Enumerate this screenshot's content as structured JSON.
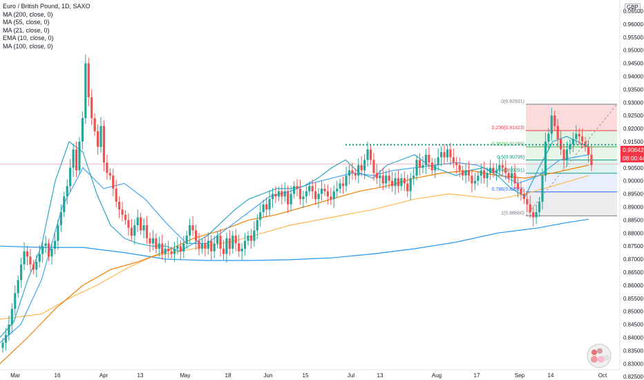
{
  "header": {
    "title": "Euro / British Pound, 1D, SAXO",
    "indicators": [
      "MA (200, close, 0)",
      "MA (55, close, 0)",
      "MA (21, close, 0)",
      "EMA (10, close, 0)",
      "MA (100, close, 0)"
    ]
  },
  "currency": "GBP",
  "price_labels": {
    "current": "0.90642",
    "timer": "08:00:44"
  },
  "colors": {
    "up": "#26a69a",
    "down": "#ef5350",
    "ma200": "#2196f3",
    "ma55": "#f57c00",
    "ma21": "#42a5f5",
    "ema10": "#2aa7c9",
    "ma100": "#ffb74d",
    "fib_line": "#9598a1",
    "resistance": "#089981",
    "current_line": "#f7525f"
  },
  "chart_data": {
    "type": "candlestick",
    "title": "Euro / British Pound, 1D, SAXO",
    "ylim": [
      0.82,
      0.97
    ],
    "y_ticks": [
      "0.82500",
      "0.83000",
      "0.83500",
      "0.84000",
      "0.84500",
      "0.85000",
      "0.85500",
      "0.86000",
      "0.86500",
      "0.87000",
      "0.87500",
      "0.88000",
      "0.88500",
      "0.89000",
      "0.89500",
      "0.90000",
      "0.90500",
      "0.91000",
      "0.91500",
      "0.92000",
      "0.92500",
      "0.93000",
      "0.93500",
      "0.94000",
      "0.94500",
      "0.95000",
      "0.95500",
      "0.96000",
      "0.96500"
    ],
    "x_ticks": [
      "Mar",
      "16",
      "Apr",
      "13",
      "May",
      "18",
      "Jun",
      "15",
      "Jul",
      "13",
      "Aug",
      "17",
      "Sep",
      "14",
      "Oct"
    ],
    "close_series": [
      0.838,
      0.841,
      0.845,
      0.851,
      0.857,
      0.862,
      0.868,
      0.873,
      0.871,
      0.868,
      0.866,
      0.869,
      0.872,
      0.875,
      0.876,
      0.871,
      0.874,
      0.877,
      0.883,
      0.888,
      0.894,
      0.898,
      0.905,
      0.912,
      0.904,
      0.915,
      0.924,
      0.945,
      0.932,
      0.924,
      0.919,
      0.913,
      0.921,
      0.907,
      0.903,
      0.902,
      0.897,
      0.892,
      0.889,
      0.887,
      0.885,
      0.882,
      0.879,
      0.883,
      0.886,
      0.881,
      0.883,
      0.878,
      0.876,
      0.878,
      0.874,
      0.876,
      0.872,
      0.874,
      0.873,
      0.872,
      0.874,
      0.875,
      0.873,
      0.876,
      0.879,
      0.883,
      0.881,
      0.877,
      0.874,
      0.876,
      0.874,
      0.877,
      0.873,
      0.876,
      0.879,
      0.874,
      0.872,
      0.878,
      0.874,
      0.879,
      0.876,
      0.873,
      0.874,
      0.877,
      0.879,
      0.877,
      0.881,
      0.885,
      0.888,
      0.891,
      0.889,
      0.893,
      0.895,
      0.894,
      0.896,
      0.894,
      0.896,
      0.891,
      0.895,
      0.898,
      0.897,
      0.893,
      0.894,
      0.896,
      0.898,
      0.896,
      0.893,
      0.895,
      0.897,
      0.896,
      0.894,
      0.893,
      0.896,
      0.897,
      0.899,
      0.898,
      0.902,
      0.904,
      0.903,
      0.902,
      0.906,
      0.904,
      0.908,
      0.912,
      0.908,
      0.903,
      0.901,
      0.902,
      0.899,
      0.902,
      0.9,
      0.898,
      0.901,
      0.898,
      0.901,
      0.899,
      0.896,
      0.901,
      0.902,
      0.908,
      0.905,
      0.906,
      0.91,
      0.907,
      0.904,
      0.906,
      0.909,
      0.911,
      0.909,
      0.912,
      0.909,
      0.907,
      0.906,
      0.904,
      0.902,
      0.904,
      0.902,
      0.899,
      0.9,
      0.902,
      0.904,
      0.901,
      0.903,
      0.905,
      0.903,
      0.904,
      0.906,
      0.905,
      0.903,
      0.901,
      0.903,
      0.899,
      0.897,
      0.895,
      0.893,
      0.891,
      0.888,
      0.886,
      0.888,
      0.892,
      0.902,
      0.915,
      0.918,
      0.925,
      0.921,
      0.916,
      0.912,
      0.908,
      0.912,
      0.914,
      0.916,
      0.918,
      0.917,
      0.915,
      0.913,
      0.91,
      0.906
    ],
    "moving_averages": [
      {
        "name": "MA (200, close, 0)",
        "points": [
          [
            0,
            0.875
          ],
          [
            60,
            0.8745
          ],
          [
            120,
            0.8745
          ],
          [
            180,
            0.8725
          ],
          [
            240,
            0.87
          ],
          [
            300,
            0.8695
          ],
          [
            360,
            0.8695
          ],
          [
            420,
            0.8698
          ],
          [
            480,
            0.8705
          ],
          [
            540,
            0.872
          ],
          [
            600,
            0.874
          ],
          [
            660,
            0.8765
          ],
          [
            720,
            0.88
          ],
          [
            780,
            0.882
          ],
          [
            820,
            0.884
          ],
          [
            852,
            0.8853
          ]
        ]
      },
      {
        "name": "MA (100, close, 0)",
        "points": [
          [
            0,
            0.847
          ],
          [
            60,
            0.849
          ],
          [
            100,
            0.855
          ],
          [
            140,
            0.86
          ],
          [
            180,
            0.866
          ],
          [
            220,
            0.871
          ],
          [
            260,
            0.873
          ],
          [
            300,
            0.875
          ],
          [
            340,
            0.877
          ],
          [
            380,
            0.88
          ],
          [
            420,
            0.883
          ],
          [
            480,
            0.886
          ],
          [
            540,
            0.889
          ],
          [
            600,
            0.893
          ],
          [
            650,
            0.895
          ],
          [
            720,
            0.893
          ],
          [
            760,
            0.895
          ],
          [
            800,
            0.898
          ],
          [
            852,
            0.902
          ]
        ]
      },
      {
        "name": "MA (55, close, 0)",
        "points": [
          [
            0,
            0.83
          ],
          [
            40,
            0.84
          ],
          [
            80,
            0.851
          ],
          [
            120,
            0.86
          ],
          [
            160,
            0.866
          ],
          [
            200,
            0.869
          ],
          [
            240,
            0.873
          ],
          [
            280,
            0.878
          ],
          [
            320,
            0.881
          ],
          [
            360,
            0.885
          ],
          [
            400,
            0.887
          ],
          [
            440,
            0.89
          ],
          [
            480,
            0.893
          ],
          [
            520,
            0.896
          ],
          [
            560,
            0.898
          ],
          [
            600,
            0.901
          ],
          [
            640,
            0.903
          ],
          [
            680,
            0.904
          ],
          [
            720,
            0.902
          ],
          [
            760,
            0.901
          ],
          [
            800,
            0.903
          ],
          [
            852,
            0.906
          ]
        ]
      },
      {
        "name": "MA (21, close, 0)",
        "points": [
          [
            0,
            0.838
          ],
          [
            30,
            0.845
          ],
          [
            60,
            0.862
          ],
          [
            90,
            0.89
          ],
          [
            120,
            0.905
          ],
          [
            150,
            0.897
          ],
          [
            180,
            0.899
          ],
          [
            210,
            0.893
          ],
          [
            240,
            0.884
          ],
          [
            270,
            0.876
          ],
          [
            300,
            0.876
          ],
          [
            330,
            0.882
          ],
          [
            360,
            0.888
          ],
          [
            390,
            0.894
          ],
          [
            420,
            0.896
          ],
          [
            450,
            0.899
          ],
          [
            480,
            0.901
          ],
          [
            510,
            0.903
          ],
          [
            540,
            0.902
          ],
          [
            570,
            0.904
          ],
          [
            600,
            0.905
          ],
          [
            630,
            0.906
          ],
          [
            660,
            0.907
          ],
          [
            690,
            0.906
          ],
          [
            720,
            0.903
          ],
          [
            750,
            0.899
          ],
          [
            780,
            0.902
          ],
          [
            810,
            0.908
          ],
          [
            852,
            0.91
          ]
        ]
      },
      {
        "name": "EMA (10, close, 0)",
        "points": [
          [
            0,
            0.84
          ],
          [
            20,
            0.846
          ],
          [
            40,
            0.862
          ],
          [
            60,
            0.875
          ],
          [
            80,
            0.9
          ],
          [
            100,
            0.915
          ],
          [
            120,
            0.911
          ],
          [
            140,
            0.895
          ],
          [
            160,
            0.883
          ],
          [
            180,
            0.878
          ],
          [
            200,
            0.876
          ],
          [
            220,
            0.875
          ],
          [
            240,
            0.875
          ],
          [
            260,
            0.873
          ],
          [
            280,
            0.876
          ],
          [
            300,
            0.879
          ],
          [
            320,
            0.884
          ],
          [
            340,
            0.889
          ],
          [
            360,
            0.893
          ],
          [
            380,
            0.895
          ],
          [
            400,
            0.897
          ],
          [
            420,
            0.897
          ],
          [
            440,
            0.898
          ],
          [
            460,
            0.901
          ],
          [
            480,
            0.905
          ],
          [
            500,
            0.908
          ],
          [
            520,
            0.903
          ],
          [
            540,
            0.901
          ],
          [
            560,
            0.906
          ],
          [
            580,
            0.908
          ],
          [
            600,
            0.91
          ],
          [
            620,
            0.906
          ],
          [
            640,
            0.904
          ],
          [
            660,
            0.902
          ],
          [
            680,
            0.904
          ],
          [
            700,
            0.905
          ],
          [
            720,
            0.902
          ],
          [
            740,
            0.897
          ],
          [
            760,
            0.894
          ],
          [
            780,
            0.905
          ],
          [
            800,
            0.915
          ],
          [
            820,
            0.917
          ],
          [
            852,
            0.913
          ]
        ]
      }
    ],
    "fibonacci": {
      "levels": [
        {
          "ratio": "0",
          "value": "0.92931",
          "label": "0(0.92931)"
        },
        {
          "ratio": "0.236",
          "value": "0.91923",
          "label": "0.236(0.91923)"
        },
        {
          "ratio": "0.382",
          "value": "0.91299",
          "label": "0.382(0.91299)"
        },
        {
          "ratio": "0.5",
          "value": "0.90795",
          "label": "0.5(0.90795)"
        },
        {
          "ratio": "0.618",
          "value": "0.90291",
          "label": "0.618(0.90291)"
        },
        {
          "ratio": "0.786",
          "value": "0.89574",
          "label": "0.786(0.89574)"
        },
        {
          "ratio": "1",
          "value": "0.88660",
          "label": "1(0.88660)"
        }
      ]
    },
    "resistance_level": 0.9138,
    "current_price": 0.90642
  }
}
